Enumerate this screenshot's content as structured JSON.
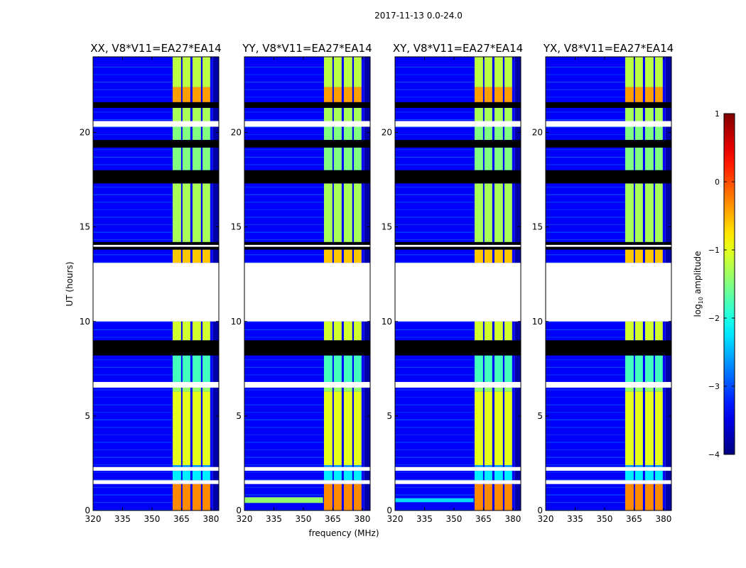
{
  "chart_data": {
    "type": "heatmap",
    "suptitle": "2017-11-13 0.0-24.0",
    "xlabel": "frequency (MHz)",
    "ylabel": "UT (hours)",
    "xlim": [
      320,
      384
    ],
    "ylim": [
      0,
      24
    ],
    "xticks": [
      320,
      335,
      350,
      365,
      380
    ],
    "yticks": [
      0,
      5,
      10,
      15,
      20
    ],
    "colorbar": {
      "label": "log10 amplitude",
      "label_main": "log",
      "label_sub": "10",
      "label_rest": " amplitude",
      "range": [
        -4,
        1
      ],
      "ticks": [
        1,
        0,
        -1,
        -2,
        -3,
        -4
      ],
      "tick_labels": [
        "1",
        "0",
        "−1",
        "−2",
        "−3",
        "−4"
      ],
      "colormap": "jet"
    },
    "background_level": -3.4,
    "data_freq_range": [
      320,
      381
    ],
    "bright_channels": [
      [
        360.5,
        364.8
      ],
      [
        365.5,
        369.5
      ],
      [
        370.6,
        374.9
      ],
      [
        375.7,
        379.6
      ]
    ],
    "segments": [
      {
        "t": [
          0.0,
          1.4
        ],
        "level": -0.3
      },
      {
        "t": [
          1.6,
          2.1
        ],
        "level": -2.2
      },
      {
        "t": [
          2.3,
          2.4
        ],
        "level": -2.6
      },
      {
        "t": [
          2.4,
          6.3
        ],
        "level": -1.0
      },
      {
        "t": [
          6.3,
          6.5
        ],
        "level": -1.4
      },
      {
        "t": [
          6.8,
          8.2
        ],
        "level": -1.8
      },
      {
        "t": [
          9.0,
          10.0
        ],
        "level": -1.1
      },
      {
        "t": [
          13.1,
          13.8
        ],
        "level": -0.6
      },
      {
        "t": [
          14.2,
          17.3
        ],
        "level": -1.3
      },
      {
        "t": [
          18.0,
          19.2
        ],
        "level": -1.5
      },
      {
        "t": [
          19.6,
          20.3
        ],
        "level": -1.5
      },
      {
        "t": [
          20.6,
          21.3
        ],
        "level": -1.3
      },
      {
        "t": [
          21.6,
          22.4
        ],
        "level": -0.4
      },
      {
        "t": [
          22.4,
          24.0
        ],
        "level": -1.2
      }
    ],
    "flagged_black": [
      [
        8.2,
        9.0
      ],
      [
        13.8,
        13.95
      ],
      [
        14.05,
        14.2
      ],
      [
        17.3,
        18.0
      ],
      [
        19.2,
        19.6
      ],
      [
        21.3,
        21.6
      ]
    ],
    "missing_white": [
      [
        10.0,
        13.1
      ],
      [
        20.3,
        20.6
      ],
      [
        6.5,
        6.8
      ],
      [
        2.1,
        2.3
      ],
      [
        1.4,
        1.6
      ],
      [
        13.95,
        14.05
      ]
    ],
    "panels": [
      {
        "title": "XX, V8*V11=EA27*EA14",
        "extra_band": null
      },
      {
        "title": "YY, V8*V11=EA27*EA14",
        "extra_band": {
          "t": [
            0.4,
            0.7
          ],
          "f": [
            320,
            360
          ],
          "level": -1.4
        }
      },
      {
        "title": "XY, V8*V11=EA27*EA14",
        "extra_band": {
          "t": [
            0.45,
            0.65
          ],
          "f": [
            320,
            360
          ],
          "level": -2.3
        }
      },
      {
        "title": "YX, V8*V11=EA27*EA14",
        "extra_band": null
      }
    ]
  }
}
